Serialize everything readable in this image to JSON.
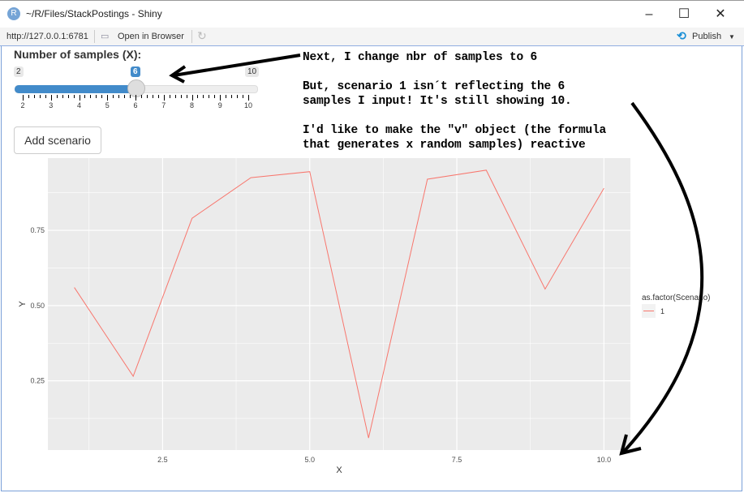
{
  "window": {
    "title": "~/R/Files/StackPostings - Shiny",
    "icon": "R",
    "minimize": "–",
    "maximize": "☐",
    "close": "✕"
  },
  "toolbar": {
    "url": "http://127.0.0.1:6781",
    "open_browser": "Open in Browser",
    "publish": "Publish"
  },
  "slider": {
    "label": "Number of samples (X):",
    "min": 2,
    "max": 10,
    "value": 6,
    "min_label": "2",
    "max_label": "10",
    "value_label": "6",
    "ticks": [
      "2",
      "3",
      "4",
      "5",
      "6",
      "7",
      "8",
      "9",
      "10"
    ],
    "accent": "#428bca"
  },
  "add_button": "Add scenario",
  "notes": [
    "Next, I change nbr of samples to 6",
    "But, scenario 1 isn´t reflecting the 6",
    "samples I input! It's still showing 10.",
    "I'd like to make the \"v\" object (the formula",
    "that generates x random samples) reactive"
  ],
  "chart_data": {
    "type": "line",
    "xlabel": "X",
    "ylabel": "Y",
    "xlim": [
      0.55,
      10.45
    ],
    "ylim": [
      0.02,
      0.99
    ],
    "xticks": [
      2.5,
      5.0,
      7.5,
      10.0
    ],
    "xtick_labels": [
      "2.5",
      "5.0",
      "7.5",
      "10.0"
    ],
    "yticks": [
      0.25,
      0.5,
      0.75
    ],
    "ytick_labels": [
      "0.25",
      "0.50",
      "0.75"
    ],
    "grid": true,
    "legend": {
      "title": "as.factor(Scenario)",
      "placement": "right",
      "entries": [
        "1"
      ]
    },
    "series": [
      {
        "name": "1",
        "color": "#f8766d",
        "x": [
          1,
          2,
          3,
          4,
          5,
          6,
          7,
          8,
          9,
          10
        ],
        "y": [
          0.56,
          0.265,
          0.79,
          0.925,
          0.945,
          0.06,
          0.92,
          0.95,
          0.555,
          0.89
        ]
      }
    ]
  }
}
